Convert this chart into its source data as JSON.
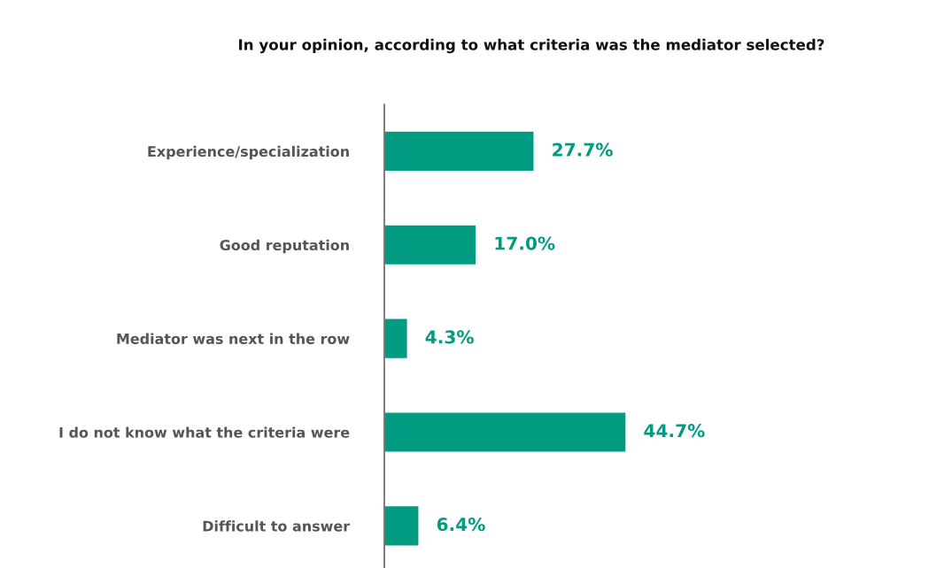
{
  "chart_data": {
    "type": "bar",
    "orientation": "horizontal",
    "title": "In your opinion, according to what criteria was the mediator selected?",
    "categories": [
      "Experience/specialization",
      "Good reputation",
      "Mediator was next in the row",
      "I do not know what the criteria were",
      "Difficult to answer"
    ],
    "values": [
      27.7,
      17.0,
      4.3,
      44.7,
      6.4
    ],
    "value_labels": [
      "27.7%",
      "17.0%",
      "4.3%",
      "44.7%",
      "6.4%"
    ],
    "color": "#009b80",
    "grid": false,
    "legend": false,
    "tick_labels": "y"
  }
}
